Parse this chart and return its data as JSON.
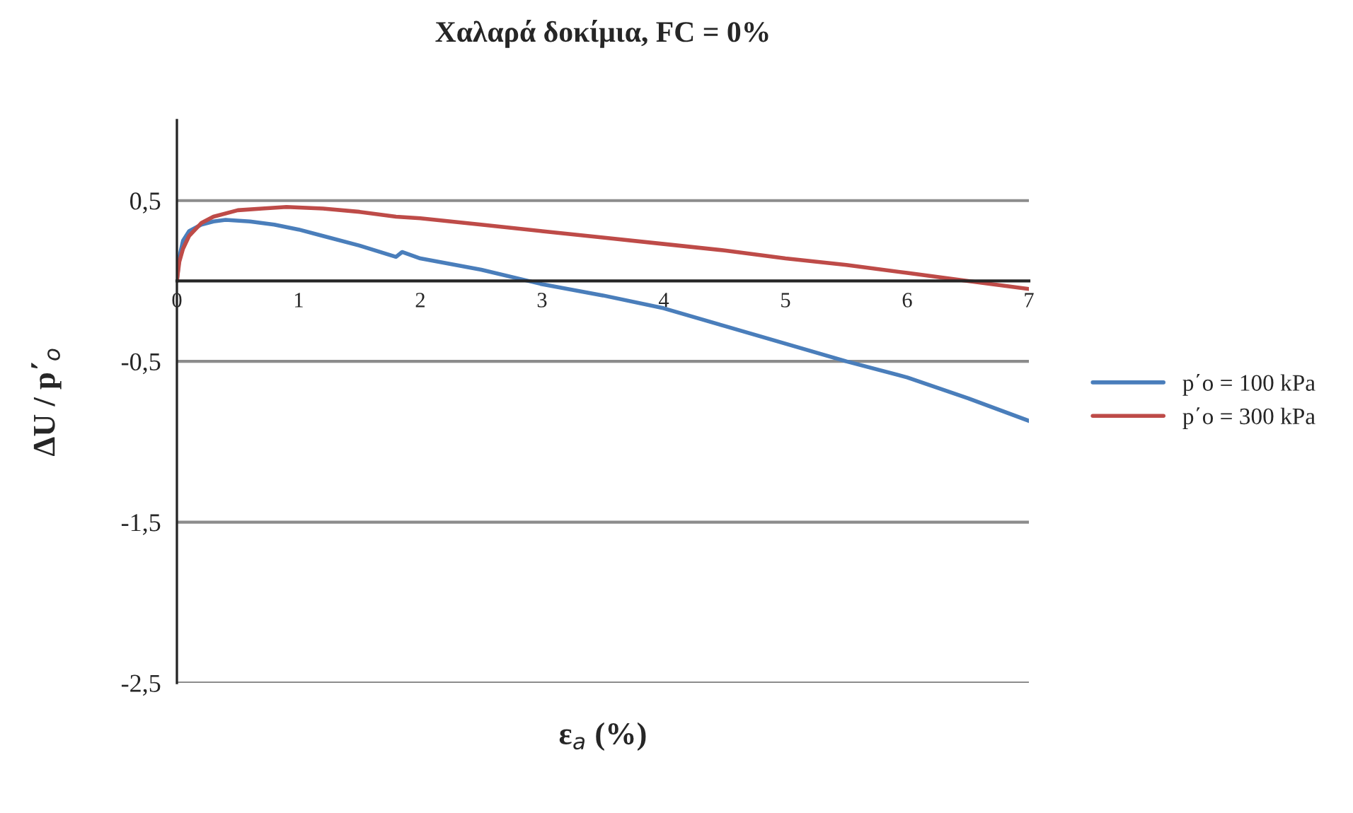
{
  "chart_data": {
    "type": "line",
    "title": "Χαλαρά δοκίμια, FC = 0%",
    "xlabel": "ε$_{a}$ (%)",
    "ylabel": "ΔU / p΄$_{o}$",
    "xlim": [
      0,
      7
    ],
    "xticks": [
      0,
      1,
      2,
      3,
      4,
      5,
      6,
      7
    ],
    "ylim": [
      -2.5,
      1
    ],
    "yticks": [
      {
        "value": -2.5,
        "label": "-2,5"
      },
      {
        "value": -1.5,
        "label": "-1,5"
      },
      {
        "value": -0.5,
        "label": "-0,5"
      },
      {
        "value": 0.5,
        "label": "0,5"
      }
    ],
    "grid": "y",
    "legend": "right",
    "marker": "none",
    "line_style": "solid",
    "series": [
      {
        "name": "p΄o = 100 kPa",
        "color": "#4a7ebb",
        "x": [
          0,
          0.02,
          0.05,
          0.1,
          0.2,
          0.3,
          0.4,
          0.6,
          0.8,
          1,
          1.2,
          1.5,
          1.8,
          1.85,
          2,
          2.5,
          3,
          3.5,
          4,
          4.5,
          5,
          5.5,
          6,
          6.5,
          7
        ],
        "values": [
          0,
          0.15,
          0.25,
          0.31,
          0.35,
          0.37,
          0.38,
          0.37,
          0.35,
          0.32,
          0.28,
          0.22,
          0.15,
          0.18,
          0.14,
          0.07,
          -0.02,
          -0.09,
          -0.17,
          -0.28,
          -0.39,
          -0.5,
          -0.6,
          -0.73,
          -0.87
        ]
      },
      {
        "name": "p΄o = 300 kPa",
        "color": "#be4b48",
        "x": [
          0,
          0.02,
          0.05,
          0.1,
          0.2,
          0.3,
          0.5,
          0.7,
          0.9,
          1.2,
          1.5,
          1.8,
          2,
          2.5,
          3,
          3.5,
          4,
          4.5,
          5,
          5.5,
          6,
          6.5,
          7
        ],
        "values": [
          0,
          0.12,
          0.2,
          0.28,
          0.36,
          0.4,
          0.44,
          0.45,
          0.46,
          0.45,
          0.43,
          0.4,
          0.39,
          0.35,
          0.31,
          0.27,
          0.23,
          0.19,
          0.14,
          0.1,
          0.05,
          0.0,
          -0.05
        ]
      }
    ]
  }
}
